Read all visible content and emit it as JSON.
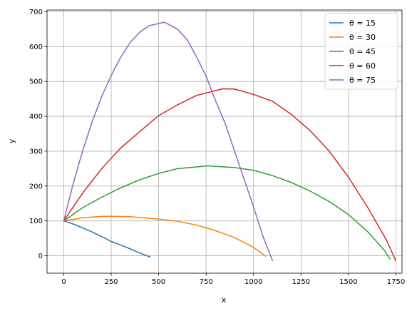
{
  "chart_data": {
    "type": "line",
    "title": "",
    "xlabel": "x",
    "ylabel": "y",
    "xlim": [
      -88,
      1782
    ],
    "ylim": [
      -50,
      705
    ],
    "xticks": [
      0,
      250,
      500,
      750,
      1000,
      1250,
      1500,
      1750
    ],
    "yticks": [
      0,
      100,
      200,
      300,
      400,
      500,
      600,
      700
    ],
    "grid": true,
    "legend_position": "upper-right",
    "y0": 100,
    "series": [
      {
        "name": "θ = 15",
        "color": "#1f77b4",
        "x": [
          0,
          50,
          100,
          150,
          200,
          250,
          300,
          350,
          400,
          458
        ],
        "y": [
          100,
          91,
          80,
          68,
          55,
          41,
          31,
          20,
          8,
          -4
        ]
      },
      {
        "name": "θ = 30",
        "color": "#ff7f0e",
        "x": [
          0,
          100,
          200,
          269,
          350,
          500,
          600,
          700,
          800,
          900,
          1000,
          1065
        ],
        "y": [
          100,
          109,
          113,
          113,
          112,
          105,
          99,
          88,
          72,
          52,
          24,
          -2
        ]
      },
      {
        "name": "θ = 45",
        "color": "#2ca02c",
        "x": [
          0,
          100,
          200,
          300,
          400,
          500,
          600,
          760,
          900,
          1000,
          1100,
          1200,
          1300,
          1400,
          1500,
          1600,
          1690,
          1720
        ],
        "y": [
          100,
          138,
          168,
          195,
          218,
          236,
          250,
          258,
          253,
          245,
          230,
          210,
          185,
          155,
          118,
          70,
          15,
          -10
        ]
      },
      {
        "name": "θ = 60",
        "color": "#d62728",
        "x": [
          0,
          100,
          200,
          300,
          400,
          500,
          600,
          700,
          837,
          900,
          1000,
          1100,
          1200,
          1300,
          1400,
          1500,
          1600,
          1700,
          1750
        ],
        "y": [
          100,
          180,
          250,
          309,
          356,
          402,
          433,
          460,
          479,
          478,
          463,
          443,
          405,
          358,
          299,
          225,
          140,
          45,
          -15
        ]
      },
      {
        "name": "θ = 75",
        "color": "#9467bd",
        "x": [
          0,
          50,
          100,
          150,
          200,
          250,
          300,
          350,
          400,
          450,
          530,
          600,
          650,
          700,
          750,
          800,
          850,
          900,
          950,
          1000,
          1050,
          1100
        ],
        "y": [
          100,
          208,
          302,
          385,
          457,
          517,
          569,
          612,
          641,
          660,
          670,
          650,
          620,
          570,
          515,
          444,
          380,
          300,
          220,
          140,
          55,
          -15
        ]
      }
    ]
  }
}
